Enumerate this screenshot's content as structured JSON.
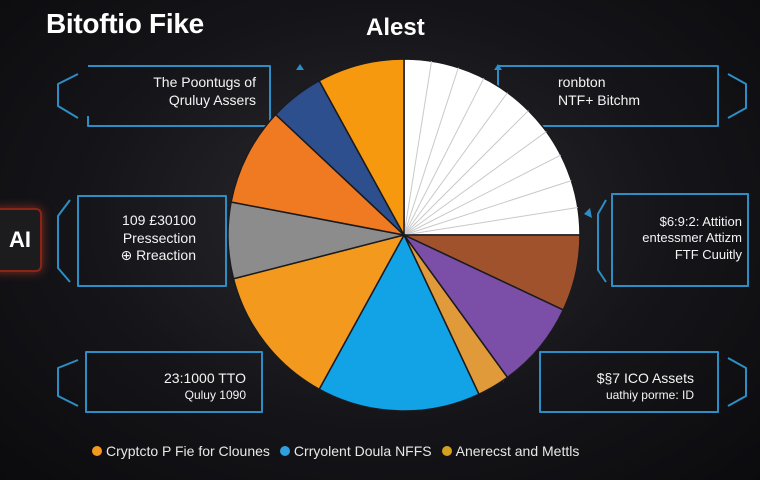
{
  "header": {
    "title": "Bitoftio Fike",
    "chart_title": "Alest"
  },
  "badge": {
    "label": "AI"
  },
  "callouts": [
    {
      "line1": "The Poontugs of",
      "line2": "Qruluy Assers"
    },
    {
      "line1": "ronbton",
      "line2": "NTF+ Bitchm"
    },
    {
      "line1": "109 £30100",
      "line2": "Pressection",
      "line3": "⊕ Rreaction"
    },
    {
      "line1": "$6:9:2: Attition",
      "line2": "entessmer Attizm",
      "line3": "FTF Cuuitly"
    },
    {
      "line1": "23:1000 TTO",
      "line2": "Quluy 1090"
    },
    {
      "line1": "$§7 ICO Assets",
      "line2": "uathiy porme: ID"
    }
  ],
  "legend": [
    {
      "label": "Cryptcto P Fie for Clounes",
      "color": "#f39a1e"
    },
    {
      "label": "Crryolent Doula NFFS",
      "color": "#2f9fe0"
    },
    {
      "label": "Anerecst and Mettls",
      "color": "#d4a020"
    }
  ],
  "chart_data": {
    "type": "pie",
    "title": "Alest",
    "slices": [
      {
        "color": "#ffffff",
        "value": 25.0
      },
      {
        "color": "#a0522d",
        "value": 7.0
      },
      {
        "color": "#7b4ea8",
        "value": 8.0
      },
      {
        "color": "#e09a3a",
        "value": 3.0
      },
      {
        "color": "#12a2e6",
        "value": 15.0
      },
      {
        "color": "#f39a1e",
        "value": 13.0
      },
      {
        "color": "#8c8c8c",
        "value": 7.0
      },
      {
        "color": "#f07a22",
        "value": 9.0
      },
      {
        "color": "#2d4f8e",
        "value": 5.0
      },
      {
        "color": "#f7990f",
        "value": 8.0
      }
    ]
  }
}
